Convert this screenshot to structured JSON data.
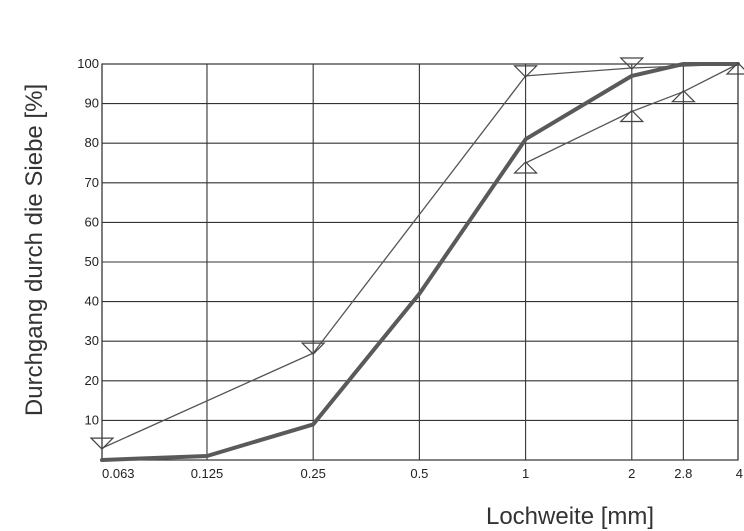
{
  "chart_data": {
    "type": "line",
    "x_scale": "log",
    "xlabel": "Lochweite [mm]",
    "ylabel": "Durchgang durch die Siebe [%]",
    "x_ticks": [
      0.063,
      0.125,
      0.25,
      0.5,
      1,
      2,
      2.8,
      4
    ],
    "x_tick_labels": [
      "0.063",
      "0.125",
      "0.25",
      "0.5",
      "1",
      "2",
      "2.8",
      "4"
    ],
    "y_ticks": [
      10,
      20,
      30,
      40,
      50,
      60,
      70,
      80,
      90,
      100
    ],
    "y_tick_labels": [
      "10",
      "20",
      "30",
      "40",
      "50",
      "60",
      "70",
      "80",
      "90",
      "100"
    ],
    "ylim": [
      0,
      100
    ],
    "grid": true,
    "series": [
      {
        "role": "upper-limit",
        "line_style": "thin",
        "color": "#555555",
        "marker": "triangle-down",
        "x": [
          0.063,
          0.25,
          1,
          2,
          4
        ],
        "y": [
          3,
          27,
          97,
          99,
          100
        ],
        "marker_x": [
          0.063,
          0.25,
          1,
          2
        ],
        "marker_y": [
          3,
          27,
          97,
          99
        ]
      },
      {
        "role": "lower-limit",
        "line_style": "thin",
        "color": "#555555",
        "marker": "triangle-up",
        "x": [
          1,
          2,
          2.8,
          4
        ],
        "y": [
          75,
          88,
          93,
          100
        ],
        "marker_x": [
          1,
          2,
          2.8,
          4
        ],
        "marker_y": [
          75,
          88,
          93,
          100
        ]
      },
      {
        "role": "grading-curve",
        "line_style": "thick",
        "color": "#5a5a5a",
        "marker": "none",
        "x": [
          0.063,
          0.125,
          0.25,
          0.5,
          1,
          2,
          2.8,
          4
        ],
        "y": [
          0,
          1,
          9,
          42,
          81,
          97,
          100,
          100
        ]
      }
    ]
  }
}
